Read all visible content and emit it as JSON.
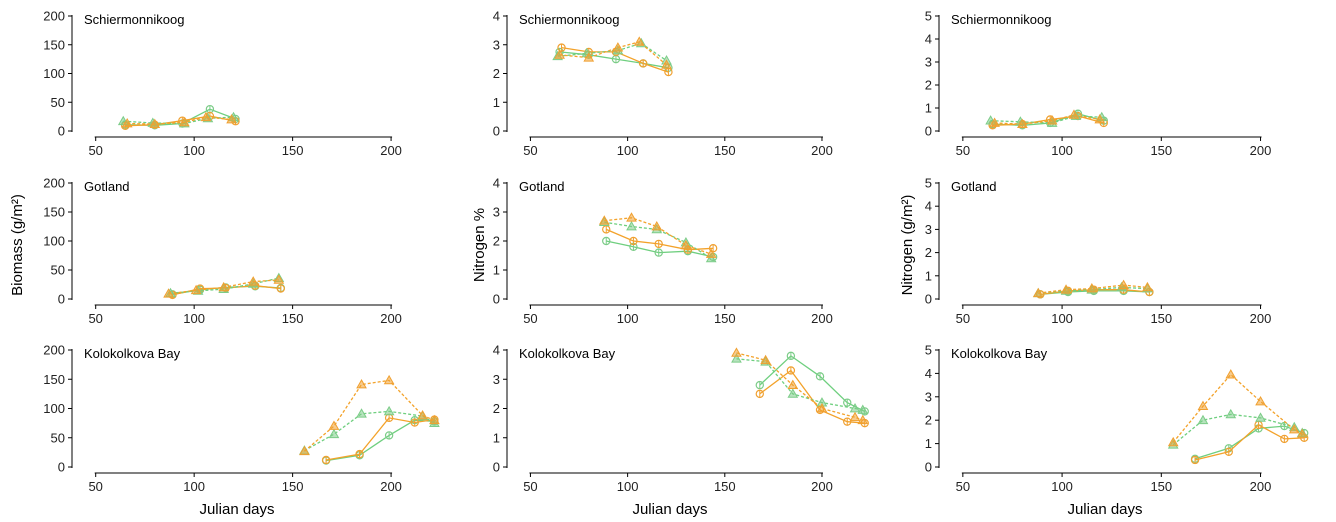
{
  "colors": {
    "green": "#6fcf7f",
    "orange": "#f3a22a",
    "green_marker": "#7ccc88",
    "orange_marker": "#f0a030"
  },
  "labels": {
    "biomass_ylabel": "Biomass (g/m²)",
    "nitrogen_pct_ylabel": "Nitrogen %",
    "nitrogen_area_ylabel": "Nitrogen (g/m²)",
    "xlabel": "Julian days"
  },
  "chart_data": [
    {
      "type": "line",
      "site": "Schiermonnikoog",
      "title": "Schiermonnikoog",
      "variable": "Biomass",
      "xlim": [
        40,
        235
      ],
      "ylim": [
        0,
        200
      ],
      "xticks": [
        50,
        100,
        150,
        200
      ],
      "yticks": [
        0,
        50,
        100,
        150,
        200
      ],
      "series": [
        {
          "color": "green",
          "marker": "circle",
          "dash": false,
          "x": [
            65,
            80,
            94,
            108,
            121
          ],
          "y": [
            11,
            10,
            13,
            38,
            21
          ]
        },
        {
          "color": "orange",
          "marker": "circle",
          "dash": false,
          "x": [
            65,
            80,
            94,
            108,
            121
          ],
          "y": [
            9,
            11,
            18,
            26,
            17
          ]
        },
        {
          "color": "green",
          "marker": "triangle",
          "dash": true,
          "x": [
            64,
            79,
            95,
            107,
            120
          ],
          "y": [
            17,
            14,
            13,
            22,
            24
          ]
        },
        {
          "color": "orange",
          "marker": "triangle",
          "dash": true,
          "x": [
            66,
            80,
            95,
            106,
            119
          ],
          "y": [
            13,
            12,
            15,
            24,
            20
          ]
        }
      ]
    },
    {
      "type": "line",
      "site": "Schiermonnikoog",
      "title": "Schiermonnikoog",
      "variable": "Nitrogen %",
      "xlim": [
        40,
        235
      ],
      "ylim": [
        0,
        4
      ],
      "xticks": [
        50,
        100,
        150,
        200
      ],
      "yticks": [
        0,
        1,
        2,
        3,
        4
      ],
      "series": [
        {
          "color": "green",
          "marker": "circle",
          "dash": false,
          "x": [
            65,
            80,
            94,
            108,
            121
          ],
          "y": [
            2.75,
            2.65,
            2.5,
            2.35,
            2.2
          ]
        },
        {
          "color": "orange",
          "marker": "circle",
          "dash": false,
          "x": [
            66,
            80,
            94,
            108,
            121
          ],
          "y": [
            2.9,
            2.75,
            2.75,
            2.35,
            2.05
          ]
        },
        {
          "color": "green",
          "marker": "triangle",
          "dash": true,
          "x": [
            64,
            79,
            95,
            107,
            120
          ],
          "y": [
            2.6,
            2.7,
            2.8,
            3.05,
            2.45
          ]
        },
        {
          "color": "orange",
          "marker": "triangle",
          "dash": true,
          "x": [
            65,
            80,
            95,
            106,
            120
          ],
          "y": [
            2.65,
            2.55,
            2.9,
            3.1,
            2.3
          ]
        }
      ]
    },
    {
      "type": "line",
      "site": "Schiermonnikoog",
      "title": "Schiermonnikoog",
      "variable": "Nitrogen (g/m2)",
      "xlim": [
        40,
        235
      ],
      "ylim": [
        0,
        5
      ],
      "xticks": [
        50,
        100,
        150,
        200
      ],
      "yticks": [
        0,
        1,
        2,
        3,
        4,
        5
      ],
      "series": [
        {
          "color": "green",
          "marker": "circle",
          "dash": false,
          "x": [
            65,
            80,
            94,
            108,
            121
          ],
          "y": [
            0.3,
            0.25,
            0.35,
            0.75,
            0.45
          ]
        },
        {
          "color": "orange",
          "marker": "circle",
          "dash": false,
          "x": [
            65,
            80,
            94,
            108,
            121
          ],
          "y": [
            0.25,
            0.3,
            0.5,
            0.65,
            0.35
          ]
        },
        {
          "color": "green",
          "marker": "triangle",
          "dash": true,
          "x": [
            64,
            79,
            95,
            107,
            120
          ],
          "y": [
            0.45,
            0.4,
            0.35,
            0.65,
            0.6
          ]
        },
        {
          "color": "orange",
          "marker": "triangle",
          "dash": true,
          "x": [
            66,
            80,
            95,
            106,
            119
          ],
          "y": [
            0.35,
            0.3,
            0.45,
            0.7,
            0.5
          ]
        }
      ]
    },
    {
      "type": "line",
      "site": "Gotland",
      "title": "Gotland",
      "variable": "Biomass",
      "xlim": [
        40,
        235
      ],
      "ylim": [
        0,
        200
      ],
      "xticks": [
        50,
        100,
        150,
        200
      ],
      "yticks": [
        0,
        50,
        100,
        150,
        200
      ],
      "series": [
        {
          "color": "green",
          "marker": "circle",
          "dash": false,
          "x": [
            89,
            103,
            116,
            131,
            144
          ],
          "y": [
            8,
            16,
            20,
            22,
            19
          ]
        },
        {
          "color": "orange",
          "marker": "circle",
          "dash": false,
          "x": [
            89,
            103,
            116,
            131,
            144
          ],
          "y": [
            7,
            18,
            19,
            23,
            18
          ]
        },
        {
          "color": "green",
          "marker": "triangle",
          "dash": true,
          "x": [
            88,
            102,
            115,
            130,
            143
          ],
          "y": [
            10,
            14,
            17,
            26,
            36
          ]
        },
        {
          "color": "orange",
          "marker": "triangle",
          "dash": true,
          "x": [
            87,
            101,
            115,
            130,
            143
          ],
          "y": [
            9,
            15,
            20,
            30,
            33
          ]
        }
      ]
    },
    {
      "type": "line",
      "site": "Gotland",
      "title": "Gotland",
      "variable": "Nitrogen %",
      "xlim": [
        40,
        235
      ],
      "ylim": [
        0,
        4
      ],
      "xticks": [
        50,
        100,
        150,
        200
      ],
      "yticks": [
        0,
        1,
        2,
        3,
        4
      ],
      "series": [
        {
          "color": "green",
          "marker": "circle",
          "dash": false,
          "x": [
            89,
            103,
            116,
            131,
            144
          ],
          "y": [
            2.0,
            1.8,
            1.6,
            1.65,
            1.45
          ]
        },
        {
          "color": "orange",
          "marker": "circle",
          "dash": false,
          "x": [
            89,
            103,
            116,
            131,
            144
          ],
          "y": [
            2.4,
            2.0,
            1.9,
            1.7,
            1.75
          ]
        },
        {
          "color": "green",
          "marker": "triangle",
          "dash": true,
          "x": [
            88,
            102,
            115,
            130,
            143
          ],
          "y": [
            2.65,
            2.5,
            2.4,
            1.95,
            1.4
          ]
        },
        {
          "color": "orange",
          "marker": "triangle",
          "dash": true,
          "x": [
            88,
            102,
            115,
            130,
            143
          ],
          "y": [
            2.7,
            2.8,
            2.5,
            1.85,
            1.55
          ]
        }
      ]
    },
    {
      "type": "line",
      "site": "Gotland",
      "title": "Gotland",
      "variable": "Nitrogen (g/m2)",
      "xlim": [
        40,
        235
      ],
      "ylim": [
        0,
        5
      ],
      "xticks": [
        50,
        100,
        150,
        200
      ],
      "yticks": [
        0,
        1,
        2,
        3,
        4,
        5
      ],
      "series": [
        {
          "color": "green",
          "marker": "circle",
          "dash": false,
          "x": [
            89,
            103,
            116,
            131,
            144
          ],
          "y": [
            0.2,
            0.3,
            0.35,
            0.35,
            0.3
          ]
        },
        {
          "color": "orange",
          "marker": "circle",
          "dash": false,
          "x": [
            89,
            103,
            116,
            131,
            144
          ],
          "y": [
            0.2,
            0.35,
            0.4,
            0.4,
            0.3
          ]
        },
        {
          "color": "green",
          "marker": "triangle",
          "dash": true,
          "x": [
            88,
            102,
            115,
            130,
            143
          ],
          "y": [
            0.25,
            0.35,
            0.4,
            0.5,
            0.45
          ]
        },
        {
          "color": "orange",
          "marker": "triangle",
          "dash": true,
          "x": [
            88,
            102,
            115,
            131,
            143
          ],
          "y": [
            0.25,
            0.4,
            0.45,
            0.6,
            0.5
          ]
        }
      ]
    },
    {
      "type": "line",
      "site": "Kolokolkova Bay",
      "title": "Kolokolkova Bay",
      "variable": "Biomass",
      "xlim": [
        40,
        235
      ],
      "ylim": [
        0,
        200
      ],
      "xticks": [
        50,
        100,
        150,
        200
      ],
      "yticks": [
        0,
        50,
        100,
        150,
        200
      ],
      "series": [
        {
          "color": "green",
          "marker": "circle",
          "dash": false,
          "x": [
            167,
            184,
            199,
            212,
            222
          ],
          "y": [
            11,
            20,
            54,
            80,
            78
          ]
        },
        {
          "color": "orange",
          "marker": "circle",
          "dash": false,
          "x": [
            167,
            184,
            199,
            212,
            222
          ],
          "y": [
            12,
            22,
            84,
            76,
            81
          ]
        },
        {
          "color": "green",
          "marker": "triangle",
          "dash": true,
          "x": [
            156,
            171,
            185,
            199,
            216,
            222
          ],
          "y": [
            28,
            56,
            91,
            95,
            87,
            75
          ]
        },
        {
          "color": "orange",
          "marker": "triangle",
          "dash": true,
          "x": [
            156,
            171,
            185,
            199,
            216,
            222
          ],
          "y": [
            27,
            70,
            141,
            148,
            88,
            80
          ]
        }
      ]
    },
    {
      "type": "line",
      "site": "Kolokolkova Bay",
      "title": "Kolokolkova Bay",
      "variable": "Nitrogen %",
      "xlim": [
        40,
        235
      ],
      "ylim": [
        0,
        4
      ],
      "xticks": [
        50,
        100,
        150,
        200
      ],
      "yticks": [
        0,
        1,
        2,
        3,
        4
      ],
      "series": [
        {
          "color": "green",
          "marker": "circle",
          "dash": false,
          "x": [
            168,
            184,
            199,
            213,
            222
          ],
          "y": [
            2.8,
            3.8,
            3.1,
            2.2,
            1.9
          ]
        },
        {
          "color": "orange",
          "marker": "circle",
          "dash": false,
          "x": [
            168,
            184,
            199,
            213,
            222
          ],
          "y": [
            2.5,
            3.3,
            1.95,
            1.55,
            1.5
          ]
        },
        {
          "color": "green",
          "marker": "triangle",
          "dash": true,
          "x": [
            156,
            171,
            185,
            200,
            217,
            221
          ],
          "y": [
            3.7,
            3.6,
            2.5,
            2.2,
            2.0,
            1.95
          ]
        },
        {
          "color": "orange",
          "marker": "triangle",
          "dash": true,
          "x": [
            156,
            171,
            185,
            200,
            217,
            221
          ],
          "y": [
            3.9,
            3.65,
            2.8,
            2.0,
            1.7,
            1.6
          ]
        }
      ]
    },
    {
      "type": "line",
      "site": "Kolokolkova Bay",
      "title": "Kolokolkova Bay",
      "variable": "Nitrogen (g/m2)",
      "xlim": [
        40,
        235
      ],
      "ylim": [
        0,
        5
      ],
      "xticks": [
        50,
        100,
        150,
        200
      ],
      "yticks": [
        0,
        1,
        2,
        3,
        4,
        5
      ],
      "series": [
        {
          "color": "green",
          "marker": "circle",
          "dash": false,
          "x": [
            167,
            184,
            199,
            212,
            222
          ],
          "y": [
            0.35,
            0.8,
            1.65,
            1.75,
            1.45
          ]
        },
        {
          "color": "orange",
          "marker": "circle",
          "dash": false,
          "x": [
            167,
            184,
            199,
            212,
            222
          ],
          "y": [
            0.3,
            0.65,
            1.8,
            1.2,
            1.25
          ]
        },
        {
          "color": "green",
          "marker": "triangle",
          "dash": true,
          "x": [
            156,
            171,
            185,
            200,
            217,
            221
          ],
          "y": [
            0.95,
            2.0,
            2.25,
            2.1,
            1.7,
            1.45
          ]
        },
        {
          "color": "orange",
          "marker": "triangle",
          "dash": true,
          "x": [
            156,
            171,
            185,
            200,
            217,
            221
          ],
          "y": [
            1.05,
            2.6,
            3.95,
            2.8,
            1.6,
            1.4
          ]
        }
      ]
    }
  ]
}
